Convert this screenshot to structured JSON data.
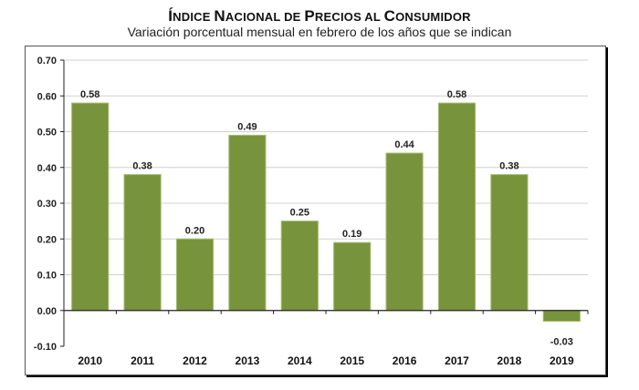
{
  "chart_data": {
    "type": "bar",
    "title": "Índice Nacional de Precios al Consumidor",
    "title_parts": [
      {
        "text": "Í",
        "big": true
      },
      {
        "text": "NDICE ",
        "big": false
      },
      {
        "text": "N",
        "big": true
      },
      {
        "text": "ACIONAL DE ",
        "big": false
      },
      {
        "text": "P",
        "big": true
      },
      {
        "text": "RECIOS AL ",
        "big": false
      },
      {
        "text": "C",
        "big": true
      },
      {
        "text": "ONSUMIDOR",
        "big": false
      }
    ],
    "subtitle": "Variación porcentual mensual en febrero de los años que se indican",
    "xlabel": "",
    "ylabel": "",
    "categories": [
      "2010",
      "2011",
      "2012",
      "2013",
      "2014",
      "2015",
      "2016",
      "2017",
      "2018",
      "2019"
    ],
    "values": [
      0.58,
      0.38,
      0.2,
      0.49,
      0.25,
      0.19,
      0.44,
      0.58,
      0.38,
      -0.03
    ],
    "value_labels": [
      "0.58",
      "0.38",
      "0.20",
      "0.49",
      "0.25",
      "0.19",
      "0.44",
      "0.58",
      "0.38",
      "-0.03"
    ],
    "ylim": [
      -0.1,
      0.7
    ],
    "yticks": [
      -0.1,
      0.0,
      0.1,
      0.2,
      0.3,
      0.4,
      0.5,
      0.6,
      0.7
    ],
    "ytick_labels": [
      "-0.10",
      "0.00",
      "0.10",
      "0.20",
      "0.30",
      "0.40",
      "0.50",
      "0.60",
      "0.70"
    ],
    "grid": true,
    "legend": "none",
    "bar_color": "#77933c",
    "bar_edge_color": "#a4bd6b"
  }
}
